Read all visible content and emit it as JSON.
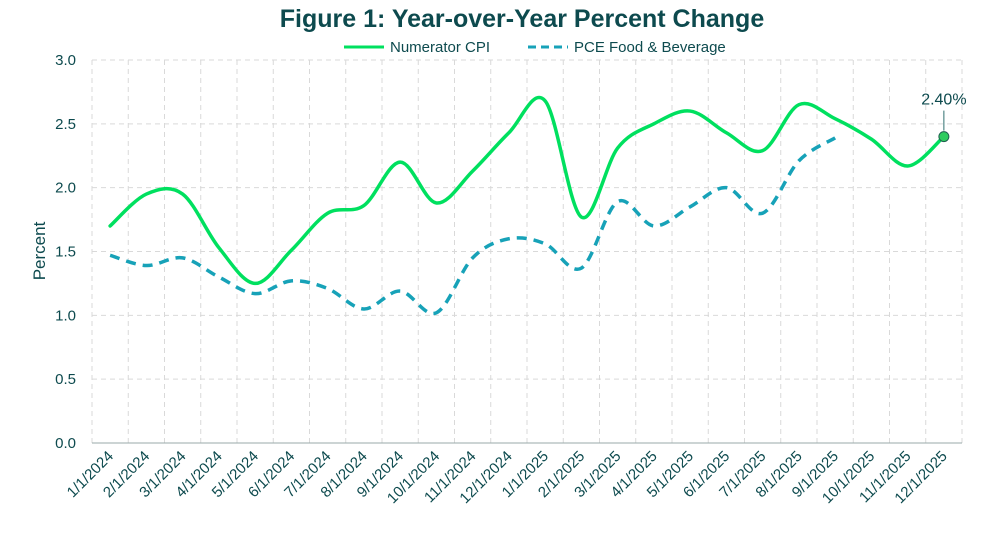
{
  "chart_data": {
    "type": "line",
    "title": "Figure 1: Year-over-Year Percent Change",
    "xlabel": "",
    "ylabel": "Percent",
    "ylim": [
      0,
      3.0
    ],
    "yticks": [
      "0.0",
      "0.5",
      "1.0",
      "1.5",
      "2.0",
      "2.5",
      "3.0"
    ],
    "grid": true,
    "legend_position": "top-center",
    "x": [
      "1/1/2024",
      "2/1/2024",
      "3/1/2024",
      "4/1/2024",
      "5/1/2024",
      "6/1/2024",
      "7/1/2024",
      "8/1/2024",
      "9/1/2024",
      "10/1/2024",
      "11/1/2024",
      "12/1/2024",
      "1/1/2025",
      "2/1/2025",
      "3/1/2025",
      "4/1/2025",
      "5/1/2025",
      "6/1/2025",
      "7/1/2025",
      "8/1/2025",
      "9/1/2025",
      "10/1/2025",
      "11/1/2025",
      "12/1/2025"
    ],
    "series": [
      {
        "name": "Numerator CPI",
        "color": "#00e05f",
        "style": "solid",
        "values": [
          1.7,
          1.95,
          1.95,
          1.53,
          1.25,
          1.51,
          1.8,
          1.86,
          2.2,
          1.88,
          2.13,
          2.43,
          2.68,
          1.77,
          2.31,
          2.5,
          2.6,
          2.43,
          2.29,
          2.65,
          2.54,
          2.38,
          2.17,
          2.4
        ]
      },
      {
        "name": "PCE Food & Beverage",
        "color": "#17a2b8",
        "style": "dashed",
        "values": [
          1.47,
          1.39,
          1.45,
          1.3,
          1.17,
          1.27,
          1.21,
          1.05,
          1.19,
          1.02,
          1.45,
          1.6,
          1.56,
          1.37,
          1.89,
          1.7,
          1.85,
          2.0,
          1.8,
          2.21,
          2.39,
          null,
          null,
          null
        ]
      }
    ],
    "annotations": [
      {
        "series": "Numerator CPI",
        "x": "12/1/2025",
        "value": 2.4,
        "text": "2.40%"
      }
    ]
  }
}
